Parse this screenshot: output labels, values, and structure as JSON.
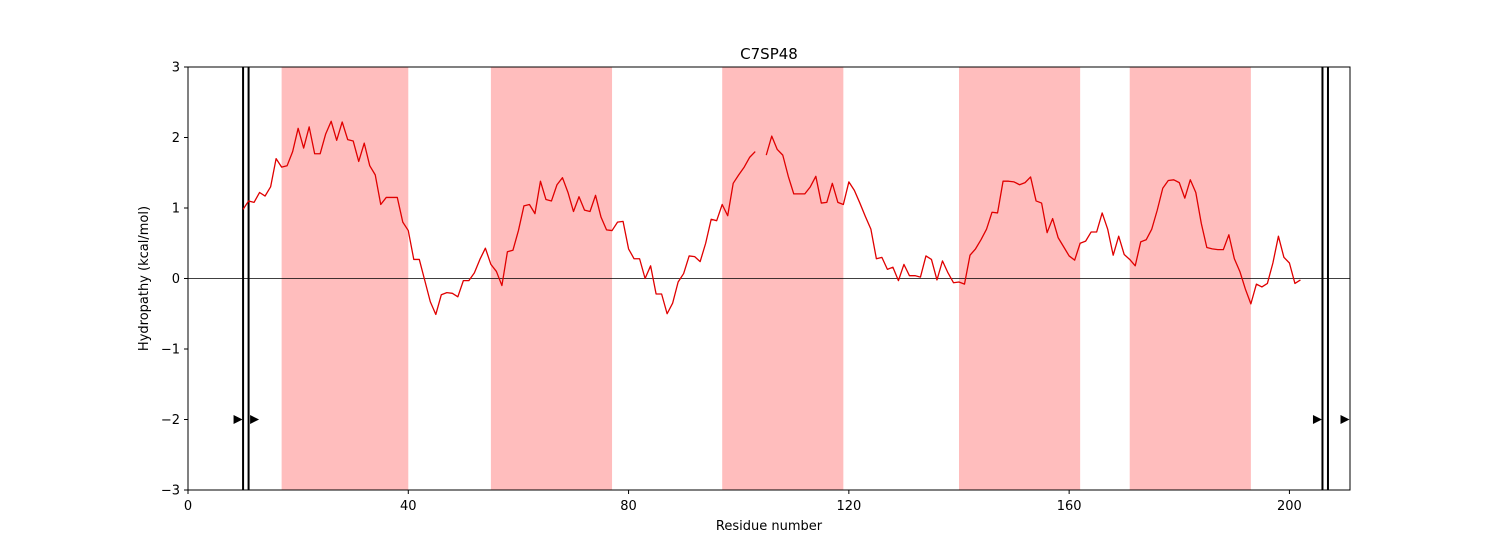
{
  "chart_data": {
    "type": "line",
    "title": "C7SP48",
    "xlabel": "Residue number",
    "ylabel": "Hydropathy (kcal/mol)",
    "xlim": [
      0,
      211
    ],
    "ylim": [
      -3,
      3
    ],
    "xticks": [
      0,
      40,
      80,
      120,
      160,
      200
    ],
    "yticks": [
      -3,
      -2,
      -1,
      0,
      1,
      2,
      3
    ],
    "grid": false,
    "colors": {
      "line": "#e00000",
      "band": "#ffbdbd",
      "zero_line": "#000000",
      "marker": "#000000"
    },
    "highlight_regions": [
      [
        17,
        40
      ],
      [
        55,
        77
      ],
      [
        97,
        119
      ],
      [
        140,
        162
      ],
      [
        171,
        193
      ]
    ],
    "vertical_lines": [
      10,
      11,
      206,
      207
    ],
    "markers": [
      {
        "x": 9,
        "y": -2
      },
      {
        "x": 12,
        "y": -2
      },
      {
        "x": 205,
        "y": -2
      },
      {
        "x": 210,
        "y": -2
      }
    ],
    "series": [
      {
        "segments": [
          {
            "x": [
              10,
              11,
              12,
              13,
              14,
              15,
              16,
              17,
              18,
              19,
              20,
              21,
              22,
              23,
              24,
              25,
              26,
              27,
              28,
              29,
              30,
              31,
              32,
              33,
              34,
              35,
              36,
              37,
              38,
              39,
              40,
              41,
              42,
              43,
              44,
              45,
              46,
              47,
              48,
              49,
              50,
              51,
              52,
              53,
              54,
              55,
              56,
              57,
              58,
              59,
              60,
              61,
              62,
              63,
              64,
              65,
              66,
              67,
              68,
              69,
              70,
              71,
              72,
              73,
              74,
              75,
              76,
              77,
              78,
              79,
              80,
              81,
              82,
              83,
              84,
              85,
              86,
              87,
              88,
              89,
              90,
              91,
              92,
              93,
              94,
              95,
              96,
              97,
              98,
              99,
              100,
              101,
              102,
              103
            ],
            "y": [
              0.98,
              1.1,
              1.08,
              1.22,
              1.17,
              1.3,
              1.7,
              1.58,
              1.6,
              1.8,
              2.13,
              1.85,
              2.15,
              1.77,
              1.77,
              2.05,
              2.23,
              1.96,
              2.22,
              1.97,
              1.95,
              1.66,
              1.92,
              1.6,
              1.47,
              1.05,
              1.15,
              1.15,
              1.15,
              0.8,
              0.68,
              0.27,
              0.27,
              -0.03,
              -0.33,
              -0.51,
              -0.23,
              -0.2,
              -0.21,
              -0.26,
              -0.03,
              -0.03,
              0.08,
              0.27,
              0.43,
              0.2,
              0.1,
              -0.1,
              0.38,
              0.4,
              0.68,
              1.03,
              1.05,
              0.92,
              1.38,
              1.12,
              1.1,
              1.33,
              1.43,
              1.22,
              0.95,
              1.16,
              0.97,
              0.95,
              1.18,
              0.87,
              0.69,
              0.68,
              0.8,
              0.81,
              0.42,
              0.28,
              0.28,
              0.0,
              0.18,
              -0.22,
              -0.22,
              -0.5,
              -0.35,
              -0.05,
              0.07,
              0.32,
              0.31,
              0.24,
              0.5,
              0.84,
              0.82,
              1.05,
              0.89,
              1.35,
              1.47,
              1.58,
              1.72,
              1.8
            ]
          },
          {
            "x": [
              105,
              106,
              107,
              108,
              109,
              110,
              111,
              112,
              113,
              114,
              115,
              116,
              117,
              118,
              119,
              120,
              121,
              122,
              123,
              124,
              125,
              126,
              127,
              128,
              129,
              130,
              131,
              132,
              133,
              134,
              135,
              136,
              137,
              138,
              139,
              140,
              141,
              142,
              143,
              144,
              145,
              146,
              147,
              148,
              149,
              150,
              151,
              152,
              153,
              154,
              155,
              156,
              157,
              158,
              159,
              160,
              161,
              162,
              163,
              164,
              165,
              166,
              167,
              168,
              169,
              170,
              171,
              172,
              173,
              174,
              175,
              176,
              177,
              178,
              179,
              180,
              181,
              182,
              183,
              184,
              185,
              186,
              187,
              188,
              189,
              190,
              191,
              192,
              193,
              194,
              195,
              196,
              197,
              198,
              199,
              200,
              201,
              202
            ],
            "y": [
              1.75,
              2.02,
              1.83,
              1.75,
              1.45,
              1.2,
              1.2,
              1.2,
              1.3,
              1.45,
              1.07,
              1.08,
              1.35,
              1.08,
              1.05,
              1.37,
              1.25,
              1.07,
              0.88,
              0.7,
              0.28,
              0.3,
              0.13,
              0.16,
              -0.03,
              0.2,
              0.04,
              0.04,
              0.02,
              0.32,
              0.27,
              -0.02,
              0.25,
              0.08,
              -0.06,
              -0.05,
              -0.08,
              0.33,
              0.42,
              0.55,
              0.7,
              0.94,
              0.93,
              1.38,
              1.38,
              1.37,
              1.33,
              1.36,
              1.44,
              1.1,
              1.07,
              0.65,
              0.85,
              0.58,
              0.45,
              0.32,
              0.26,
              0.5,
              0.53,
              0.66,
              0.66,
              0.93,
              0.7,
              0.33,
              0.6,
              0.34,
              0.27,
              0.18,
              0.52,
              0.55,
              0.7,
              0.97,
              1.28,
              1.39,
              1.4,
              1.36,
              1.14,
              1.4,
              1.22,
              0.78,
              0.44,
              0.42,
              0.41,
              0.41,
              0.62,
              0.28,
              0.1,
              -0.15,
              -0.36,
              -0.08,
              -0.12,
              -0.07,
              0.22,
              0.6,
              0.3,
              0.22,
              -0.07,
              -0.02
            ]
          }
        ]
      }
    ]
  }
}
